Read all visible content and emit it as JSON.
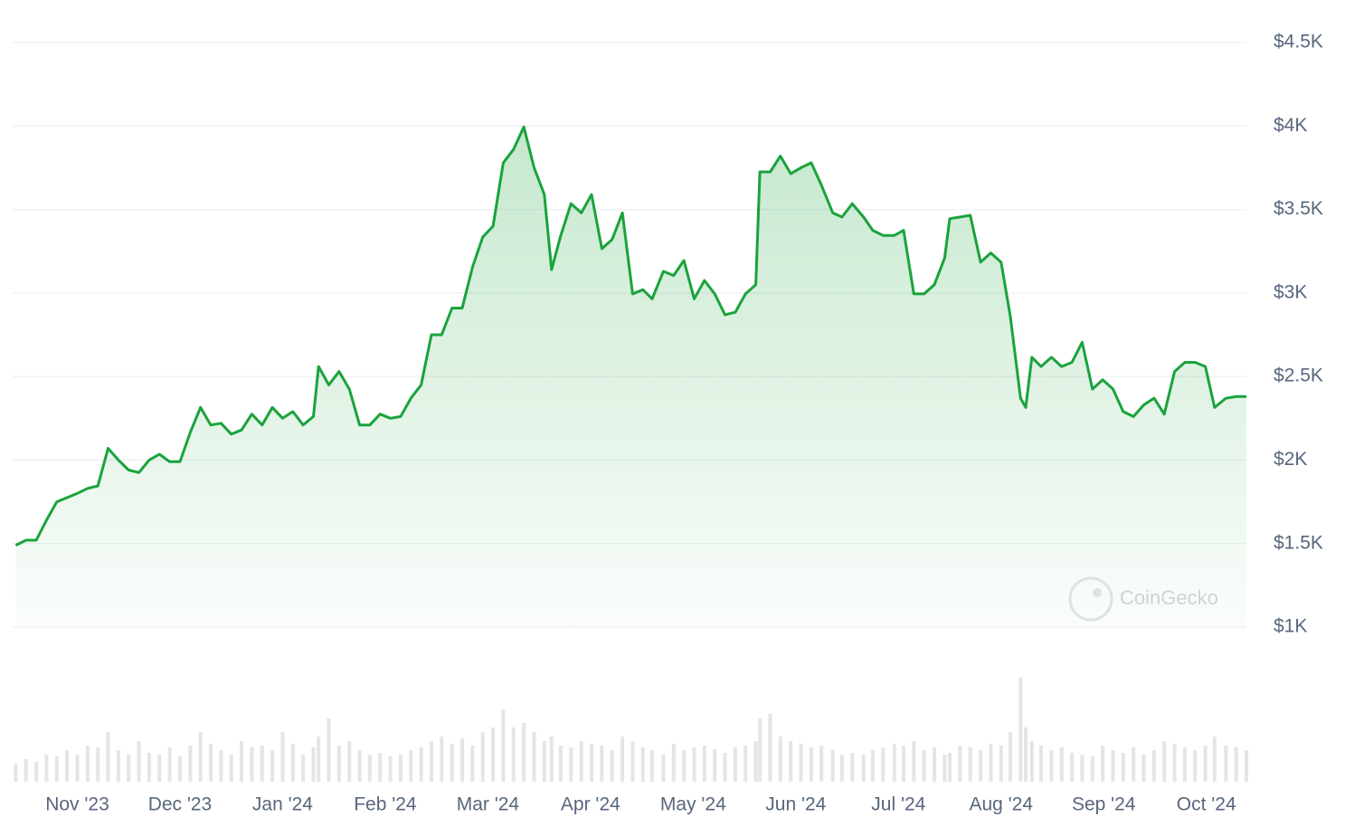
{
  "chart_data": {
    "type": "area",
    "color": "#1aa33c",
    "volume_color": "#e3e5e8",
    "grid": true,
    "y_axis_side": "right",
    "watermark": "CoinGecko",
    "xlim": [
      0.37,
      12.39
    ],
    "xticks": [
      {
        "value": 1,
        "label": "Nov '23"
      },
      {
        "value": 2,
        "label": "Dec '23"
      },
      {
        "value": 3,
        "label": "Jan '24"
      },
      {
        "value": 4,
        "label": "Feb '24"
      },
      {
        "value": 5,
        "label": "Mar '24"
      },
      {
        "value": 6,
        "label": "Apr '24"
      },
      {
        "value": 7,
        "label": "May '24"
      },
      {
        "value": 8,
        "label": "Jun '24"
      },
      {
        "value": 9,
        "label": "Jul '24"
      },
      {
        "value": 10,
        "label": "Aug '24"
      },
      {
        "value": 11,
        "label": "Sep '24"
      },
      {
        "value": 12,
        "label": "Oct '24"
      }
    ],
    "ylim": [
      1000,
      4500
    ],
    "yticks": [
      {
        "value": 1000,
        "label": "$1K"
      },
      {
        "value": 1500,
        "label": "$1.5K"
      },
      {
        "value": 2000,
        "label": "$2K"
      },
      {
        "value": 2500,
        "label": "$2.5K"
      },
      {
        "value": 3000,
        "label": "$3K"
      },
      {
        "value": 3500,
        "label": "$3.5K"
      },
      {
        "value": 4000,
        "label": "$4K"
      },
      {
        "value": 4500,
        "label": "$4.5K"
      }
    ],
    "y2lim": [
      0,
      120
    ],
    "x": [
      0.4,
      0.5,
      0.6,
      0.7,
      0.8,
      0.9,
      1.0,
      1.1,
      1.2,
      1.3,
      1.4,
      1.5,
      1.6,
      1.7,
      1.8,
      1.9,
      2.0,
      2.1,
      2.2,
      2.3,
      2.4,
      2.5,
      2.6,
      2.7,
      2.8,
      2.9,
      3.0,
      3.1,
      3.2,
      3.3,
      3.35,
      3.45,
      3.55,
      3.65,
      3.75,
      3.85,
      3.95,
      4.05,
      4.15,
      4.25,
      4.35,
      4.45,
      4.55,
      4.65,
      4.75,
      4.85,
      4.95,
      5.05,
      5.15,
      5.25,
      5.35,
      5.45,
      5.55,
      5.62,
      5.71,
      5.81,
      5.91,
      6.01,
      6.11,
      6.21,
      6.31,
      6.41,
      6.51,
      6.6,
      6.71,
      6.81,
      6.91,
      7.01,
      7.11,
      7.21,
      7.31,
      7.41,
      7.51,
      7.61,
      7.65,
      7.75,
      7.85,
      7.95,
      8.05,
      8.15,
      8.25,
      8.36,
      8.45,
      8.55,
      8.66,
      8.75,
      8.85,
      8.96,
      9.05,
      9.15,
      9.25,
      9.35,
      9.45,
      9.5,
      9.6,
      9.7,
      9.8,
      9.9,
      10.0,
      10.09,
      10.19,
      10.24,
      10.3,
      10.39,
      10.49,
      10.59,
      10.69,
      10.79,
      10.89,
      10.99,
      11.09,
      11.19,
      11.29,
      11.39,
      11.49,
      11.59,
      11.69,
      11.79,
      11.89,
      11.99,
      12.08,
      12.19,
      12.29,
      12.39
    ],
    "values": [
      1490,
      1520,
      1520,
      1640,
      1750,
      1775,
      1800,
      1830,
      1845,
      2070,
      2000,
      1940,
      1925,
      2000,
      2035,
      1990,
      1990,
      2165,
      2315,
      2210,
      2220,
      2155,
      2180,
      2275,
      2210,
      2315,
      2250,
      2290,
      2210,
      2260,
      2560,
      2450,
      2530,
      2425,
      2210,
      2210,
      2275,
      2250,
      2260,
      2370,
      2450,
      2750,
      2750,
      2910,
      2910,
      3155,
      3335,
      3400,
      3780,
      3860,
      3995,
      3750,
      3590,
      3140,
      3345,
      3535,
      3480,
      3590,
      3265,
      3320,
      3480,
      2995,
      3020,
      2965,
      3130,
      3105,
      3195,
      2965,
      3075,
      2995,
      2870,
      2885,
      2995,
      3050,
      3725,
      3725,
      3820,
      3715,
      3750,
      3780,
      3645,
      3480,
      3455,
      3535,
      3455,
      3375,
      3345,
      3345,
      3375,
      2995,
      2995,
      3050,
      3210,
      3445,
      3455,
      3465,
      3185,
      3240,
      3185,
      2860,
      2370,
      2315,
      2615,
      2560,
      2615,
      2560,
      2585,
      2705,
      2425,
      2480,
      2425,
      2290,
      2260,
      2330,
      2370,
      2275,
      2530,
      2585,
      2585,
      2560,
      2315,
      2370,
      2380,
      2380
    ],
    "volume": [
      20,
      25,
      22,
      30,
      28,
      35,
      30,
      40,
      38,
      55,
      35,
      30,
      45,
      32,
      30,
      38,
      28,
      40,
      55,
      42,
      35,
      30,
      45,
      38,
      40,
      35,
      55,
      42,
      30,
      38,
      50,
      70,
      40,
      45,
      35,
      30,
      32,
      28,
      30,
      35,
      38,
      45,
      50,
      42,
      48,
      40,
      55,
      60,
      80,
      60,
      65,
      55,
      45,
      50,
      40,
      38,
      45,
      42,
      40,
      35,
      50,
      45,
      38,
      35,
      30,
      42,
      35,
      38,
      40,
      36,
      32,
      38,
      40,
      45,
      70,
      75,
      50,
      45,
      42,
      38,
      40,
      35,
      30,
      32,
      30,
      35,
      38,
      42,
      40,
      45,
      35,
      38,
      30,
      32,
      40,
      38,
      35,
      42,
      40,
      55,
      115,
      60,
      45,
      40,
      35,
      38,
      32,
      30,
      28,
      40,
      35,
      32,
      38,
      30,
      35,
      45,
      42,
      38,
      35,
      40,
      50,
      40,
      38,
      35
    ]
  }
}
